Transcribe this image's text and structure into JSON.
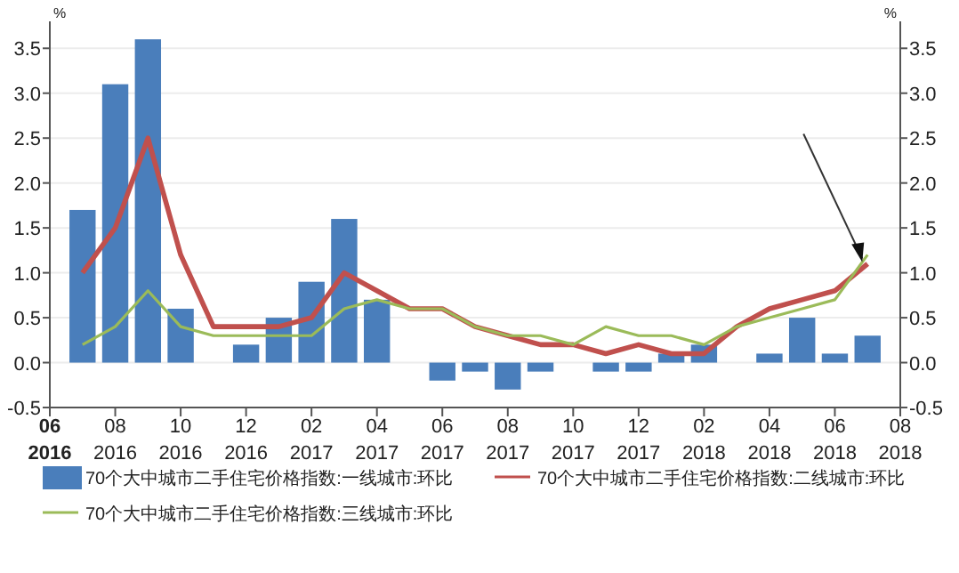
{
  "chart_data": {
    "type": "bar",
    "ylabel": "%",
    "y2label": "%",
    "x": [
      "2016-07",
      "2016-08",
      "2016-09",
      "2016-10",
      "2016-11",
      "2016-12",
      "2017-01",
      "2017-02",
      "2017-03",
      "2017-04",
      "2017-05",
      "2017-06",
      "2017-07",
      "2017-08",
      "2017-09",
      "2017-10",
      "2017-11",
      "2017-12",
      "2018-01",
      "2018-02",
      "2018-03",
      "2018-04",
      "2018-05",
      "2018-06",
      "2018-07"
    ],
    "series": [
      {
        "name": "70个大中城市二手住宅价格指数:一线城市:环比",
        "color": "#4a7ebb",
        "values": [
          1.7,
          3.1,
          3.6,
          0.6,
          0.0,
          0.2,
          0.5,
          0.9,
          1.6,
          0.7,
          0.0,
          -0.2,
          -0.1,
          -0.3,
          -0.1,
          0.0,
          -0.1,
          -0.1,
          0.1,
          0.2,
          0.0,
          0.1,
          0.5,
          0.1,
          0.3
        ]
      },
      {
        "name": "70个大中城市二手住宅价格指数:二线城市:环比",
        "type": "line",
        "color": "#c0504d",
        "values": [
          1.0,
          1.5,
          2.5,
          1.2,
          0.4,
          0.4,
          0.4,
          0.5,
          1.0,
          0.8,
          0.6,
          0.6,
          0.4,
          0.3,
          0.2,
          0.2,
          0.1,
          0.2,
          0.1,
          0.1,
          0.4,
          0.6,
          0.7,
          0.8,
          1.1
        ]
      },
      {
        "name": "70个大中城市二手住宅价格指数:三线城市:环比",
        "type": "line",
        "color": "#9bbb59",
        "values": [
          0.2,
          0.4,
          0.8,
          0.4,
          0.3,
          0.3,
          0.3,
          0.3,
          0.6,
          0.7,
          0.6,
          0.6,
          0.4,
          0.3,
          0.3,
          0.2,
          0.4,
          0.3,
          0.3,
          0.2,
          0.4,
          0.5,
          0.6,
          0.7,
          1.2
        ]
      }
    ],
    "xlim": [
      "2016-06",
      "2018-08"
    ],
    "xticks": [
      {
        "value": "2016-06",
        "label": "06\n2016"
      },
      {
        "value": "2016-08",
        "label": "08\n2016"
      },
      {
        "value": "2016-10",
        "label": "10\n2016"
      },
      {
        "value": "2016-12",
        "label": "12\n2016"
      },
      {
        "value": "2017-02",
        "label": "02\n2017"
      },
      {
        "value": "2017-04",
        "label": "04\n2017"
      },
      {
        "value": "2017-06",
        "label": "06\n2017"
      },
      {
        "value": "2017-08",
        "label": "08\n2017"
      },
      {
        "value": "2017-10",
        "label": "10\n2017"
      },
      {
        "value": "2017-12",
        "label": "12\n2017"
      },
      {
        "value": "2018-02",
        "label": "02\n2018"
      },
      {
        "value": "2018-04",
        "label": "04\n2018"
      },
      {
        "value": "2018-06",
        "label": "06\n2018"
      },
      {
        "value": "2018-08",
        "label": "08\n2018"
      }
    ],
    "ylim": [
      -0.5,
      3.8
    ],
    "yticks": [
      {
        "value": -0.5,
        "label": "-0.5"
      },
      {
        "value": 0,
        "label": "0.0"
      },
      {
        "value": 0.5,
        "label": "0.5"
      },
      {
        "value": 1,
        "label": "1.0"
      },
      {
        "value": 1.5,
        "label": "1.5"
      },
      {
        "value": 2,
        "label": "2.0"
      },
      {
        "value": 2.5,
        "label": "2.5"
      },
      {
        "value": 3,
        "label": "3.0"
      },
      {
        "value": 3.5,
        "label": "3.5"
      }
    ],
    "y2lim": [
      -0.5,
      3.8
    ],
    "y2ticks": [
      {
        "value": -0.5,
        "label": "-0.5"
      },
      {
        "value": 0,
        "label": "0.0"
      },
      {
        "value": 0.5,
        "label": "0.5"
      },
      {
        "value": 1,
        "label": "1.0"
      },
      {
        "value": 1.5,
        "label": "1.5"
      },
      {
        "value": 2,
        "label": "2.0"
      },
      {
        "value": 2.5,
        "label": "2.5"
      },
      {
        "value": 3,
        "label": "3.0"
      },
      {
        "value": 3.5,
        "label": "3.5"
      }
    ],
    "grid": "y",
    "legend": "bottom"
  }
}
